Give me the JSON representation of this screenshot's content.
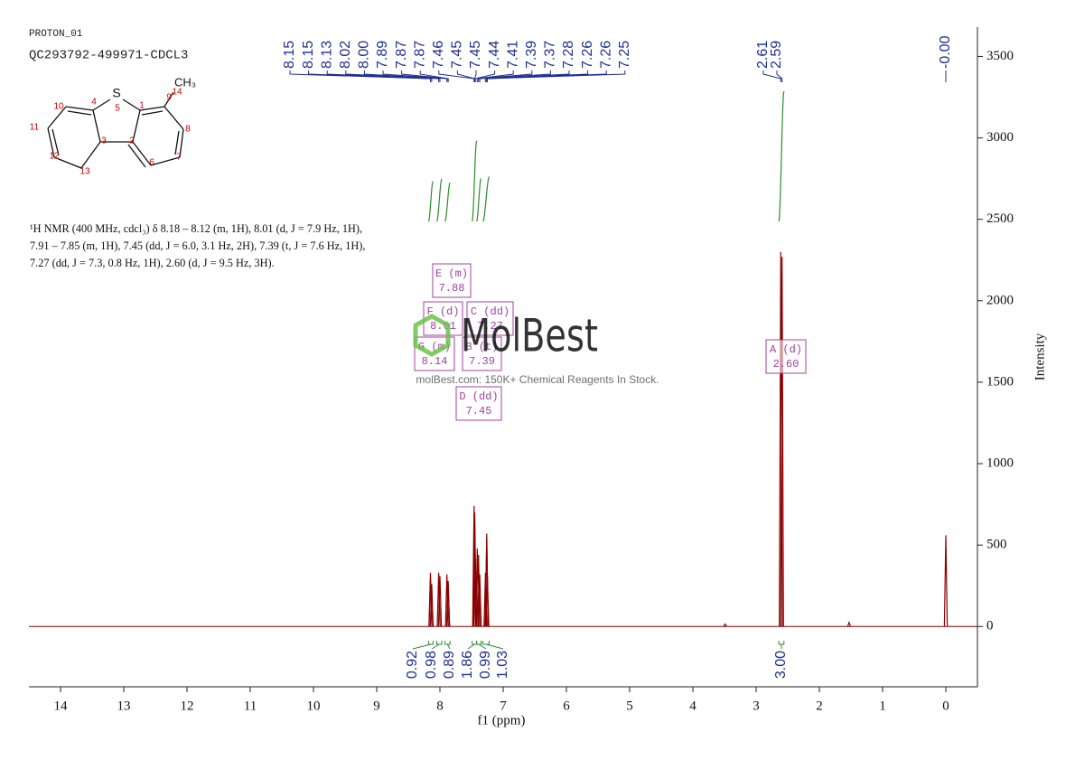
{
  "header": {
    "experiment": "PROTON_01",
    "sample": "QC293792-499971-CDCL3"
  },
  "structure": {
    "labels": [
      "S",
      "CH₃",
      "1",
      "2",
      "3",
      "4",
      "5",
      "6",
      "7",
      "8",
      "9",
      "10",
      "11",
      "12",
      "13",
      "14"
    ]
  },
  "description": "¹H NMR (400 MHz, cdcl₃) δ 8.18 – 8.12 (m, 1H), 8.01 (d, J = 7.9 Hz, 1H), 7.91 – 7.85 (m, 1H), 7.45 (dd, J = 6.0, 3.1 Hz, 2H), 7.39 (t, J = 7.6 Hz, 1H), 7.27 (dd, J = 7.3, 0.8 Hz, 1H), 2.60 (d, J = 9.5 Hz, 3H).",
  "watermark": {
    "brand": "MolBest",
    "tagline": "molBest.com: 150K+ Chemical Reagents In Stock."
  },
  "chart_data": {
    "type": "spectrum",
    "x_label": "f1 (ppm)",
    "y_label": "Intensity",
    "xlim": [
      14.5,
      -0.5
    ],
    "xticks": [
      14,
      13,
      12,
      11,
      10,
      9,
      8,
      7,
      6,
      5,
      4,
      3,
      2,
      1,
      0
    ],
    "ylim": [
      -370,
      3680
    ],
    "yticks": [
      0,
      500,
      1000,
      1500,
      2000,
      2500,
      3000,
      3500
    ],
    "color": "#8b0000",
    "peaks": {
      "x": [
        8.15,
        8.15,
        8.13,
        8.02,
        8.0,
        7.89,
        7.87,
        7.87,
        7.46,
        7.45,
        7.45,
        7.44,
        7.41,
        7.39,
        7.37,
        7.28,
        7.26,
        7.26,
        7.25,
        2.61,
        2.59,
        0
      ],
      "values": [
        330,
        300,
        260,
        330,
        310,
        320,
        280,
        260,
        740,
        700,
        650,
        420,
        480,
        440,
        320,
        330,
        570,
        540,
        310,
        2300,
        2270,
        560
      ],
      "labels": [
        "8.15",
        "8.15",
        "8.13",
        "8.02",
        "8.00",
        "7.89",
        "7.87",
        "7.87",
        "7.46",
        "7.45",
        "7.45",
        "7.44",
        "7.41",
        "7.39",
        "7.37",
        "7.28",
        "7.26",
        "7.26",
        "7.25",
        "2.61",
        "2.59",
        "-0.00"
      ],
      "color": "#1f2f8f"
    },
    "impurities": {
      "x": [
        3.49,
        1.53
      ],
      "values": [
        15,
        25
      ]
    },
    "integrals": {
      "from": [
        8.18,
        8.05,
        7.92,
        7.49,
        7.42,
        7.32,
        2.64
      ],
      "to": [
        8.11,
        7.97,
        7.84,
        7.42,
        7.35,
        7.22,
        2.56
      ],
      "values": [
        0.92,
        0.98,
        0.89,
        1.86,
        0.99,
        1.03,
        3
      ],
      "value_labels": [
        "0.92",
        "0.98",
        "0.89",
        "1.86",
        "0.99",
        "1.03",
        "3.00"
      ],
      "color": "#2e8b2e"
    },
    "multiplets": [
      {
        "name": "A (d)",
        "shift": "2.60"
      },
      {
        "name": "B (t)",
        "shift": "7.39"
      },
      {
        "name": "C (dd)",
        "shift": "7.27"
      },
      {
        "name": "D (dd)",
        "shift": "7.45"
      },
      {
        "name": "E (m)",
        "shift": "7.88"
      },
      {
        "name": "F (d)",
        "shift": "8.01"
      },
      {
        "name": "G (m)",
        "shift": "8.14"
      }
    ],
    "multiplet_color": "#a040a0"
  }
}
